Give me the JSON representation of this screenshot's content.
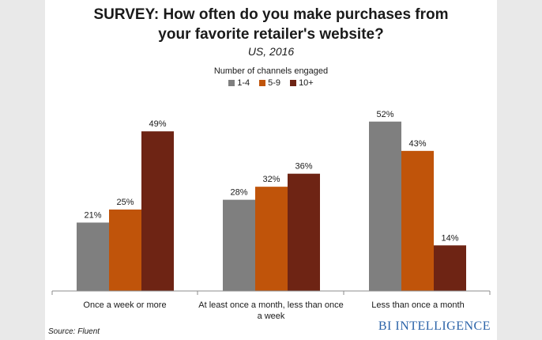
{
  "chart_data": {
    "type": "bar",
    "title_line1": "SURVEY: How often do you make purchases from",
    "title_line2": "your favorite retailer's website?",
    "subtitle": "US, 2016",
    "legend_title": "Number of channels engaged",
    "categories": [
      [
        "Once a week or more"
      ],
      [
        "At least once a month, less than once",
        "a week"
      ],
      [
        "Less than once a month"
      ]
    ],
    "series": [
      {
        "name": "1-4",
        "color": "#7f7f7f",
        "values": [
          21,
          28,
          52
        ]
      },
      {
        "name": "5-9",
        "color": "#c0540a",
        "values": [
          25,
          32,
          43
        ]
      },
      {
        "name": "10+",
        "color": "#6e2414",
        "values": [
          49,
          36,
          14
        ]
      }
    ],
    "value_suffix": "%",
    "ylim": [
      0,
      60
    ],
    "grid": false,
    "legend_position": "top-center"
  },
  "footer": {
    "source": "Source: Fluent",
    "brand": "BI INTELLIGENCE"
  }
}
